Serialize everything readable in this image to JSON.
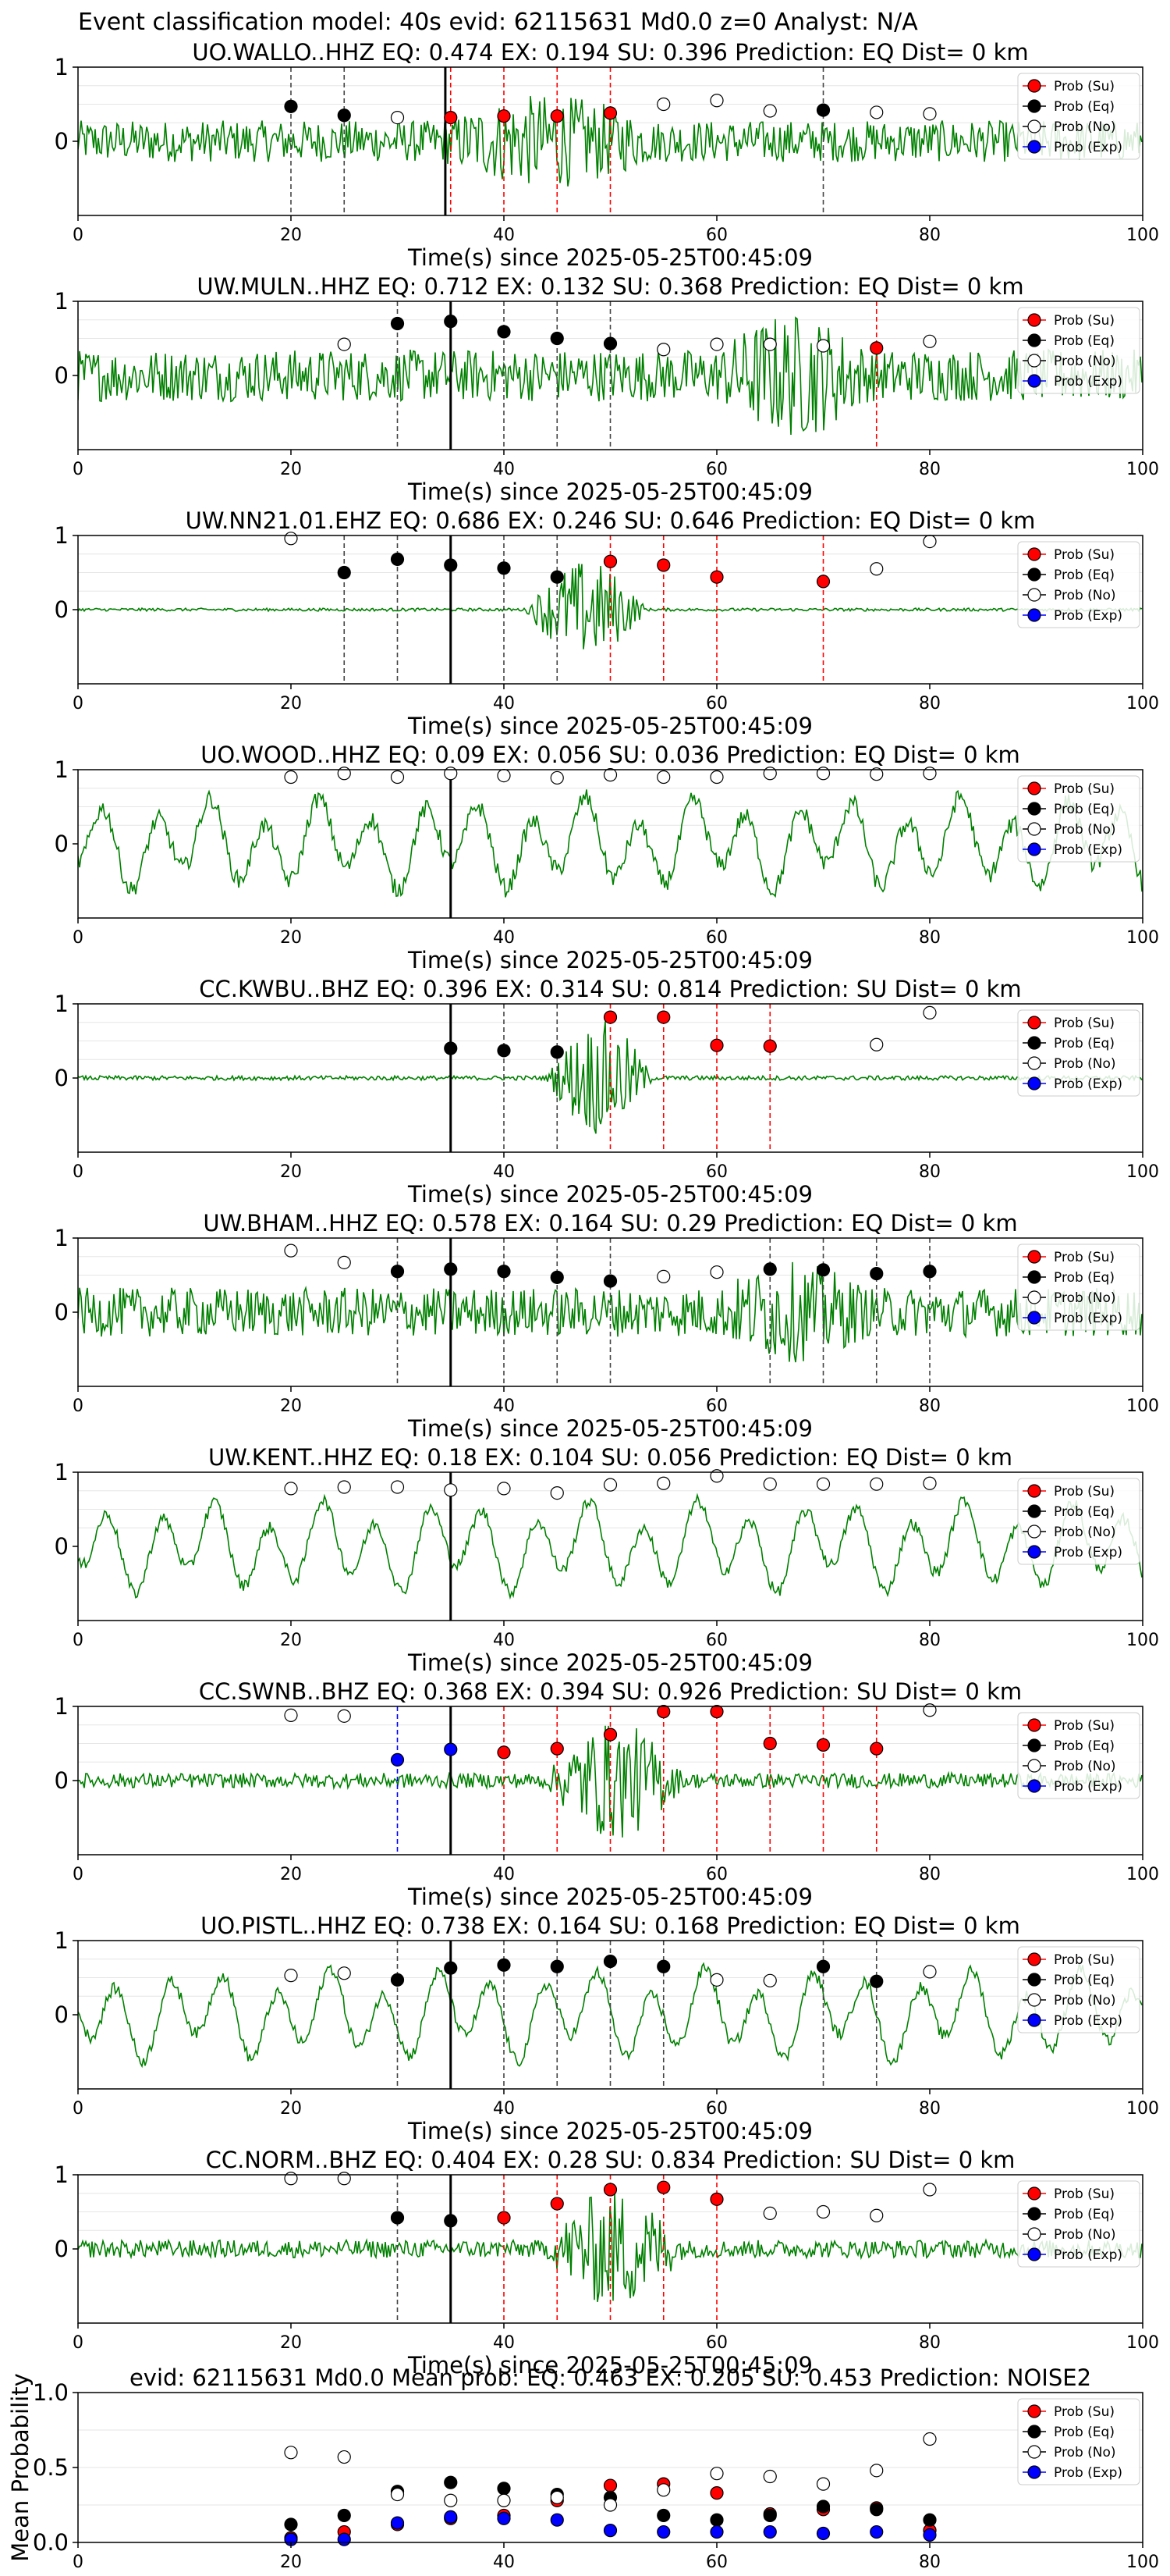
{
  "figure_title": "Event classification model: 40s evid: 62115631 Md0.0 z=0 Analyst: N/A",
  "legend_labels": [
    "Prob (Su)",
    "Prob (Eq)",
    "Prob (No)",
    "Prob (Exp)"
  ],
  "colors": {
    "waveform": "#008000",
    "su": "#ff0000",
    "eq": "#000000",
    "no": "#ffffff",
    "exp": "#0000ff",
    "arrival": "#000000"
  },
  "chart_data": [
    {
      "type": "line",
      "title": "UO.WALLO..HHZ   EQ: 0.474  EX: 0.194  SU: 0.396   Prediction: EQ    Dist= 0 km",
      "xlabel": "Time(s) since 2025-05-25T00:45:09",
      "ylabel": "",
      "xlim": [
        0,
        100
      ],
      "x_ticks": [
        0,
        20,
        40,
        60,
        80,
        100
      ],
      "y_ticks": [
        0,
        1
      ],
      "ylim": [
        -1,
        1
      ],
      "waveform": {
        "noise": 0.28,
        "burst": 0.35,
        "burst_start": 34,
        "burst_end": 62,
        "osc": 0
      },
      "arrival_line": 34.5,
      "points": {
        "su": [
          [
            35,
            0.32
          ],
          [
            40,
            0.34
          ],
          [
            45,
            0.34
          ],
          [
            50,
            0.38
          ]
        ],
        "eq": [
          [
            20,
            0.47
          ],
          [
            25,
            0.35
          ],
          [
            70,
            0.42
          ]
        ],
        "no": [
          [
            30,
            0.32
          ],
          [
            55,
            0.5
          ],
          [
            60,
            0.55
          ],
          [
            65,
            0.41
          ],
          [
            75,
            0.39
          ],
          [
            80,
            0.37
          ]
        ],
        "exp": []
      }
    },
    {
      "type": "line",
      "title": "UW.MULN..HHZ   EQ: 0.712  EX: 0.132  SU: 0.368   Prediction: EQ    Dist= 0 km",
      "xlabel": "Time(s) since 2025-05-25T00:45:09",
      "ylabel": "",
      "xlim": [
        0,
        100
      ],
      "x_ticks": [
        0,
        20,
        40,
        60,
        80,
        100
      ],
      "y_ticks": [
        0,
        1
      ],
      "ylim": [
        -1,
        1
      ],
      "waveform": {
        "noise": 0.35,
        "burst": 0.5,
        "burst_start": 60,
        "burst_end": 80,
        "osc": 0
      },
      "arrival_line": 35,
      "points": {
        "su": [
          [
            75,
            0.37
          ]
        ],
        "eq": [
          [
            30,
            0.7
          ],
          [
            35,
            0.73
          ],
          [
            40,
            0.59
          ],
          [
            45,
            0.5
          ],
          [
            50,
            0.43
          ]
        ],
        "no": [
          [
            25,
            0.42
          ],
          [
            55,
            0.35
          ],
          [
            60,
            0.42
          ],
          [
            65,
            0.42
          ],
          [
            70,
            0.4
          ],
          [
            80,
            0.46
          ]
        ],
        "exp": []
      }
    },
    {
      "type": "line",
      "title": "UW.NN21.01.EHZ   EQ: 0.686  EX: 0.246  SU: 0.646   Prediction: EQ    Dist= 0 km",
      "xlabel": "Time(s) since 2025-05-25T00:45:09",
      "ylabel": "",
      "xlim": [
        0,
        100
      ],
      "x_ticks": [
        0,
        20,
        40,
        60,
        80,
        100
      ],
      "y_ticks": [
        0,
        1
      ],
      "ylim": [
        -1,
        1
      ],
      "waveform": {
        "noise": 0.02,
        "burst": 0.65,
        "burst_start": 42,
        "burst_end": 58,
        "osc": 0
      },
      "arrival_line": 35,
      "points": {
        "su": [
          [
            50,
            0.65
          ],
          [
            55,
            0.6
          ],
          [
            60,
            0.44
          ],
          [
            70,
            0.38
          ]
        ],
        "eq": [
          [
            25,
            0.5
          ],
          [
            30,
            0.68
          ],
          [
            35,
            0.6
          ],
          [
            40,
            0.56
          ],
          [
            45,
            0.44
          ]
        ],
        "no": [
          [
            20,
            0.96
          ],
          [
            75,
            0.55
          ],
          [
            80,
            0.92
          ]
        ],
        "exp": []
      }
    },
    {
      "type": "line",
      "title": "UO.WOOD..HHZ   EQ: 0.09  EX: 0.056  SU: 0.036   Prediction: EQ    Dist= 0 km",
      "xlabel": "Time(s) since 2025-05-25T00:45:09",
      "ylabel": "",
      "xlim": [
        0,
        100
      ],
      "x_ticks": [
        0,
        20,
        40,
        60,
        80,
        100
      ],
      "y_ticks": [
        0,
        1
      ],
      "ylim": [
        -1,
        1
      ],
      "waveform": {
        "noise": 0.12,
        "burst": 0,
        "burst_start": 0,
        "burst_end": 0,
        "osc": 0.55
      },
      "arrival_line": 35,
      "points": {
        "su": [],
        "eq": [],
        "no": [
          [
            20,
            0.9
          ],
          [
            25,
            0.95
          ],
          [
            30,
            0.9
          ],
          [
            35,
            0.95
          ],
          [
            40,
            0.92
          ],
          [
            45,
            0.89
          ],
          [
            50,
            0.93
          ],
          [
            55,
            0.9
          ],
          [
            60,
            0.9
          ],
          [
            65,
            0.95
          ],
          [
            70,
            0.95
          ],
          [
            75,
            0.94
          ],
          [
            80,
            0.95
          ]
        ],
        "exp": []
      }
    },
    {
      "type": "line",
      "title": "CC.KWBU..BHZ   EQ: 0.396  EX: 0.314  SU: 0.814   Prediction: SU    Dist= 0 km",
      "xlabel": "Time(s) since 2025-05-25T00:45:09",
      "ylabel": "",
      "xlim": [
        0,
        100
      ],
      "x_ticks": [
        0,
        20,
        40,
        60,
        80,
        100
      ],
      "y_ticks": [
        0,
        1
      ],
      "ylim": [
        -1,
        1
      ],
      "waveform": {
        "noise": 0.03,
        "burst": 0.75,
        "burst_start": 44,
        "burst_end": 58,
        "osc": 0
      },
      "arrival_line": 35,
      "points": {
        "su": [
          [
            50,
            0.82
          ],
          [
            55,
            0.82
          ],
          [
            60,
            0.44
          ],
          [
            65,
            0.43
          ]
        ],
        "eq": [
          [
            35,
            0.4
          ],
          [
            40,
            0.37
          ],
          [
            45,
            0.35
          ]
        ],
        "no": [
          [
            75,
            0.45
          ],
          [
            80,
            0.88
          ]
        ],
        "exp": []
      }
    },
    {
      "type": "line",
      "title": "UW.BHAM..HHZ   EQ: 0.578  EX: 0.164  SU: 0.29   Prediction: EQ    Dist= 0 km",
      "xlabel": "Time(s) since 2025-05-25T00:45:09",
      "ylabel": "",
      "xlim": [
        0,
        100
      ],
      "x_ticks": [
        0,
        20,
        40,
        60,
        80,
        100
      ],
      "y_ticks": [
        0,
        1
      ],
      "ylim": [
        -1,
        1
      ],
      "waveform": {
        "noise": 0.33,
        "burst": 0.35,
        "burst_start": 60,
        "burst_end": 80,
        "osc": 0
      },
      "arrival_line": 35,
      "points": {
        "su": [],
        "eq": [
          [
            30,
            0.55
          ],
          [
            35,
            0.58
          ],
          [
            40,
            0.55
          ],
          [
            45,
            0.47
          ],
          [
            50,
            0.42
          ],
          [
            65,
            0.58
          ],
          [
            70,
            0.57
          ],
          [
            75,
            0.52
          ],
          [
            80,
            0.55
          ]
        ],
        "no": [
          [
            20,
            0.83
          ],
          [
            25,
            0.67
          ],
          [
            55,
            0.48
          ],
          [
            60,
            0.54
          ]
        ],
        "exp": []
      }
    },
    {
      "type": "line",
      "title": "UW.KENT..HHZ   EQ: 0.18  EX: 0.104  SU: 0.056   Prediction: EQ    Dist= 0 km",
      "xlabel": "Time(s) since 2025-05-25T00:45:09",
      "ylabel": "",
      "xlim": [
        0,
        100
      ],
      "x_ticks": [
        0,
        20,
        40,
        60,
        80,
        100
      ],
      "y_ticks": [
        0,
        1
      ],
      "ylim": [
        -1,
        1
      ],
      "waveform": {
        "noise": 0.08,
        "burst": 0,
        "burst_start": 0,
        "burst_end": 0,
        "osc": 0.55
      },
      "arrival_line": 35,
      "points": {
        "su": [],
        "eq": [],
        "no": [
          [
            20,
            0.78
          ],
          [
            25,
            0.8
          ],
          [
            30,
            0.8
          ],
          [
            35,
            0.76
          ],
          [
            40,
            0.78
          ],
          [
            45,
            0.72
          ],
          [
            50,
            0.83
          ],
          [
            55,
            0.85
          ],
          [
            60,
            0.95
          ],
          [
            65,
            0.84
          ],
          [
            70,
            0.84
          ],
          [
            75,
            0.84
          ],
          [
            80,
            0.85
          ]
        ],
        "exp": []
      }
    },
    {
      "type": "line",
      "title": "CC.SWNB..BHZ   EQ: 0.368  EX: 0.394  SU: 0.926   Prediction: SU    Dist= 0 km",
      "xlabel": "Time(s) since 2025-05-25T00:45:09",
      "ylabel": "",
      "xlim": [
        0,
        100
      ],
      "x_ticks": [
        0,
        20,
        40,
        60,
        80,
        100
      ],
      "y_ticks": [
        0,
        1
      ],
      "ylim": [
        -1,
        1
      ],
      "waveform": {
        "noise": 0.1,
        "burst": 0.7,
        "burst_start": 44,
        "burst_end": 62,
        "osc": 0
      },
      "arrival_line": 35,
      "points": {
        "su": [
          [
            40,
            0.38
          ],
          [
            45,
            0.43
          ],
          [
            50,
            0.62
          ],
          [
            55,
            0.93
          ],
          [
            60,
            0.93
          ],
          [
            65,
            0.5
          ],
          [
            70,
            0.48
          ],
          [
            75,
            0.43
          ]
        ],
        "eq": [],
        "no": [
          [
            20,
            0.88
          ],
          [
            25,
            0.87
          ],
          [
            80,
            0.95
          ]
        ],
        "exp": [
          [
            30,
            0.28
          ],
          [
            35,
            0.42
          ]
        ]
      }
    },
    {
      "type": "line",
      "title": "UO.PISTL..HHZ   EQ: 0.738  EX: 0.164  SU: 0.168   Prediction: EQ    Dist= 0 km",
      "xlabel": "Time(s) since 2025-05-25T00:45:09",
      "ylabel": "",
      "xlim": [
        0,
        100
      ],
      "x_ticks": [
        0,
        20,
        40,
        60,
        80,
        100
      ],
      "y_ticks": [
        0,
        1
      ],
      "ylim": [
        -1,
        1
      ],
      "waveform": {
        "noise": 0.08,
        "burst": 0,
        "burst_start": 0,
        "burst_end": 0,
        "osc": 0.55
      },
      "arrival_line": 35,
      "points": {
        "su": [],
        "eq": [
          [
            30,
            0.47
          ],
          [
            35,
            0.63
          ],
          [
            40,
            0.67
          ],
          [
            45,
            0.65
          ],
          [
            50,
            0.72
          ],
          [
            55,
            0.65
          ],
          [
            70,
            0.65
          ],
          [
            75,
            0.45
          ]
        ],
        "no": [
          [
            20,
            0.53
          ],
          [
            25,
            0.56
          ],
          [
            60,
            0.47
          ],
          [
            65,
            0.46
          ],
          [
            80,
            0.58
          ]
        ],
        "exp": []
      }
    },
    {
      "type": "line",
      "title": "CC.NORM..BHZ   EQ: 0.404  EX: 0.28  SU: 0.834   Prediction: SU    Dist= 0 km",
      "xlabel": "Time(s) since 2025-05-25T00:45:09",
      "ylabel": "",
      "xlim": [
        0,
        100
      ],
      "x_ticks": [
        0,
        20,
        40,
        60,
        80,
        100
      ],
      "y_ticks": [
        0,
        1
      ],
      "ylim": [
        -1,
        1
      ],
      "waveform": {
        "noise": 0.12,
        "burst": 0.7,
        "burst_start": 44,
        "burst_end": 62,
        "osc": 0
      },
      "arrival_line": 35,
      "points": {
        "su": [
          [
            40,
            0.42
          ],
          [
            45,
            0.61
          ],
          [
            50,
            0.8
          ],
          [
            55,
            0.83
          ],
          [
            60,
            0.67
          ]
        ],
        "eq": [
          [
            30,
            0.42
          ],
          [
            35,
            0.38
          ]
        ],
        "no": [
          [
            20,
            0.95
          ],
          [
            25,
            0.95
          ],
          [
            65,
            0.48
          ],
          [
            70,
            0.5
          ],
          [
            75,
            0.45
          ],
          [
            80,
            0.8
          ]
        ],
        "exp": []
      }
    },
    {
      "type": "scatter",
      "title": "evid: 62115631  Md0.0   Mean prob:   EQ: 0.463  EX: 0.205  SU: 0.453   Prediction: NOISE2",
      "xlabel": "",
      "ylabel": "Mean Probability",
      "xlim": [
        0,
        100
      ],
      "ylim": [
        0,
        1
      ],
      "x_ticks": [
        0,
        20,
        40,
        60,
        80,
        100
      ],
      "y_ticks": [
        0.0,
        0.5,
        1.0
      ],
      "y_tick_labels": [
        "0.0",
        "0.5",
        "1.0"
      ],
      "points": {
        "su": [
          [
            20,
            0.03
          ],
          [
            25,
            0.07
          ],
          [
            30,
            0.12
          ],
          [
            35,
            0.16
          ],
          [
            40,
            0.18
          ],
          [
            45,
            0.28
          ],
          [
            50,
            0.38
          ],
          [
            55,
            0.39
          ],
          [
            60,
            0.33
          ],
          [
            65,
            0.19
          ],
          [
            70,
            0.22
          ],
          [
            75,
            0.23
          ],
          [
            80,
            0.08
          ]
        ],
        "eq": [
          [
            20,
            0.12
          ],
          [
            25,
            0.18
          ],
          [
            30,
            0.34
          ],
          [
            35,
            0.4
          ],
          [
            40,
            0.36
          ],
          [
            45,
            0.32
          ],
          [
            50,
            0.3
          ],
          [
            55,
            0.18
          ],
          [
            60,
            0.15
          ],
          [
            65,
            0.18
          ],
          [
            70,
            0.24
          ],
          [
            75,
            0.22
          ],
          [
            80,
            0.15
          ]
        ],
        "no": [
          [
            20,
            0.6
          ],
          [
            25,
            0.57
          ],
          [
            30,
            0.32
          ],
          [
            35,
            0.28
          ],
          [
            40,
            0.28
          ],
          [
            45,
            0.3
          ],
          [
            50,
            0.25
          ],
          [
            55,
            0.35
          ],
          [
            60,
            0.46
          ],
          [
            65,
            0.44
          ],
          [
            70,
            0.39
          ],
          [
            75,
            0.48
          ],
          [
            80,
            0.69
          ]
        ],
        "exp": [
          [
            20,
            0.02
          ],
          [
            25,
            0.02
          ],
          [
            30,
            0.13
          ],
          [
            35,
            0.17
          ],
          [
            40,
            0.16
          ],
          [
            45,
            0.15
          ],
          [
            50,
            0.08
          ],
          [
            55,
            0.07
          ],
          [
            60,
            0.07
          ],
          [
            65,
            0.07
          ],
          [
            70,
            0.06
          ],
          [
            75,
            0.07
          ],
          [
            80,
            0.05
          ]
        ]
      }
    }
  ]
}
